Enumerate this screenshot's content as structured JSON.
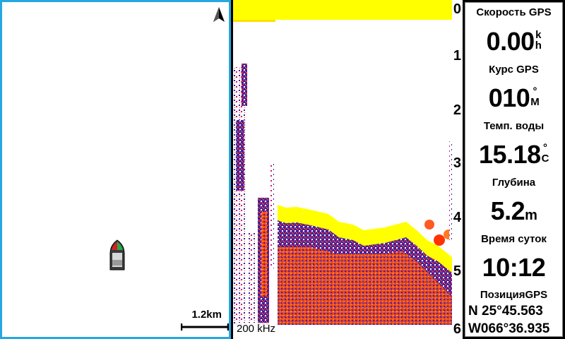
{
  "map": {
    "scale_label": "1.2km",
    "icons": [
      "north-arrow-icon",
      "boat-icon"
    ]
  },
  "sonar": {
    "frequency": "200 kHz",
    "depth_ticks": [
      "0",
      "1",
      "2",
      "3",
      "4",
      "5",
      "6"
    ],
    "colors": {
      "bottom_return": "#ffff00",
      "strong": "#ff3300",
      "weak": "#3a22a8"
    }
  },
  "data_fields": {
    "speed": {
      "label": "Скорость GPS",
      "value": "0.00",
      "unit_top": "k",
      "unit_bottom": "h"
    },
    "course": {
      "label": "Курс GPS",
      "value": "010",
      "unit_top": "°",
      "unit_bottom": "M"
    },
    "water_temp": {
      "label": "Темп. воды",
      "value": "15.18",
      "unit_top": "°",
      "unit_bottom": "C"
    },
    "depth": {
      "label": "Глубина",
      "value": "5.2",
      "unit": "m"
    },
    "time": {
      "label": "Время суток",
      "value": "10:12"
    },
    "position": {
      "label": "ПозицияGPS",
      "lat": "N  25°45.563",
      "lon": "W066°36.935"
    }
  },
  "accent_color": "#27a7e0"
}
